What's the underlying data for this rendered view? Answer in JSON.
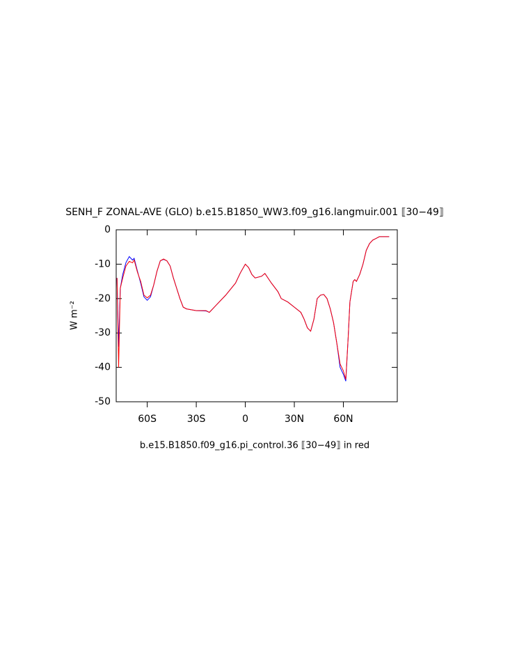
{
  "chart_data": {
    "type": "line",
    "title": "SENH_F ZONAL-AVE (GLO) b.e15.B1850_WW3.f09_g16.langmuir.001 ⟦30−49⟧",
    "y_label": "W m⁻²",
    "x_label": "b.e15.B1850.f09_g16.pi_control.36 ⟦30−49⟧ in red",
    "xlim": [
      -79,
      93
    ],
    "ylim": [
      -50,
      0
    ],
    "xticks": [
      {
        "value": -60,
        "label": "60S"
      },
      {
        "value": -30,
        "label": "30S"
      },
      0,
      {
        "value": 30,
        "label": "30N"
      },
      {
        "value": 60,
        "label": "60N"
      }
    ],
    "yticks": [
      -50,
      -40,
      -30,
      -20,
      -10,
      0
    ],
    "x": [
      -78.5,
      -77.5,
      -76.5,
      -75,
      -73,
      -71,
      -69,
      -68,
      -66,
      -64,
      -62,
      -60,
      -58,
      -56,
      -54,
      -52,
      -50,
      -48,
      -46,
      -44,
      -42,
      -40,
      -38,
      -36,
      -30,
      -24,
      -22,
      -18,
      -12,
      -6,
      -3,
      0,
      2,
      4,
      6,
      10,
      12,
      16,
      20,
      22,
      26,
      30,
      34,
      36,
      38,
      40,
      42,
      44,
      46,
      48,
      50,
      52,
      54,
      56,
      58,
      60,
      61.5,
      63,
      64,
      66,
      67,
      68,
      70,
      72,
      74,
      76,
      78,
      80,
      82,
      88
    ],
    "series": [
      {
        "color": "#0000ff",
        "values": [
          -14,
          -34,
          -17,
          -13,
          -9.5,
          -7.8,
          -8.8,
          -8.3,
          -12,
          -15.5,
          -19.5,
          -20.5,
          -19.5,
          -16,
          -12,
          -9,
          -8.6,
          -9,
          -10.5,
          -14,
          -17,
          -20,
          -22.5,
          -23,
          -23.5,
          -23.6,
          -24,
          -22,
          -19,
          -15.5,
          -12.5,
          -10,
          -11,
          -13,
          -14,
          -13.5,
          -12.7,
          -15.5,
          -18,
          -20,
          -21,
          -22.5,
          -24,
          -26,
          -28.5,
          -29.5,
          -26,
          -20,
          -19,
          -18.8,
          -20,
          -23,
          -27,
          -33,
          -40,
          -42,
          -44,
          -31,
          -21,
          -15,
          -14.5,
          -15,
          -13,
          -10,
          -6,
          -4,
          -3,
          -2.5,
          -2,
          -2
        ]
      },
      {
        "color": "#ff0000",
        "values": [
          -14,
          -40,
          -17,
          -14,
          -10.5,
          -9.2,
          -9.6,
          -8.8,
          -12.3,
          -15,
          -19,
          -19.8,
          -19,
          -16,
          -12,
          -9,
          -8.5,
          -9,
          -10.5,
          -14,
          -17,
          -20,
          -22.5,
          -23,
          -23.5,
          -23.5,
          -24,
          -22,
          -19,
          -15.5,
          -12.5,
          -10,
          -11,
          -13,
          -14,
          -13.5,
          -12.7,
          -15.5,
          -18,
          -20,
          -21,
          -22.5,
          -24,
          -26,
          -28.5,
          -29.5,
          -26,
          -20,
          -19,
          -18.8,
          -20,
          -23,
          -27,
          -33,
          -39,
          -41,
          -43.5,
          -31,
          -21,
          -15,
          -14.5,
          -15,
          -13,
          -10,
          -6,
          -4,
          -3,
          -2.5,
          -2,
          -2
        ]
      }
    ]
  }
}
